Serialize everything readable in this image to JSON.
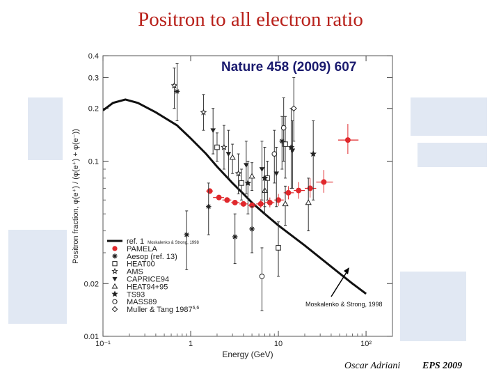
{
  "slide": {
    "title": "Positron to all electron ratio",
    "author": "Oscar Adriani",
    "event": "EPS 2009"
  },
  "chart_data": {
    "type": "scatter",
    "annotation": "Nature 458 (2009) 607",
    "xlabel": "Energy (GeV)",
    "ylabel": "Positron fraction, φ(e⁺) / (φ(e⁺) + φ(e⁻))",
    "xscale": "log",
    "yscale": "log",
    "xlim": [
      0.1,
      200
    ],
    "ylim": [
      0.01,
      0.4
    ],
    "x_ticks": [
      {
        "value": 0.1,
        "label": "10⁻¹"
      },
      {
        "value": 1,
        "label": "1"
      },
      {
        "value": 10,
        "label": "10"
      },
      {
        "value": 100,
        "label": "10²"
      }
    ],
    "y_ticks": [
      {
        "value": 0.01,
        "label": "0.01"
      },
      {
        "value": 0.02,
        "label": "0.02"
      },
      {
        "value": 0.1,
        "label": "0.1"
      },
      {
        "value": 0.2,
        "label": "0.2"
      },
      {
        "value": 0.3,
        "label": "0.3"
      },
      {
        "value": 0.4,
        "label": "0.4"
      }
    ],
    "legend_position": "bottom-left",
    "legend": [
      {
        "label": "ref. 1",
        "sublabel": "Moskalenko & Strong, 1998",
        "marker": "line",
        "color": "#111111"
      },
      {
        "label": "PAMELA",
        "marker": "circle-filled",
        "color": "#e0282c"
      },
      {
        "label": "Aesop (ref. 13)",
        "marker": "asterisk",
        "color": "#222222"
      },
      {
        "label": "HEAT00",
        "marker": "square-open",
        "color": "#222222"
      },
      {
        "label": "AMS",
        "marker": "star",
        "color": "#222222"
      },
      {
        "label": "CAPRICE94",
        "marker": "triangle-down",
        "color": "#222222"
      },
      {
        "label": "HEAT94+95",
        "marker": "triangle-open",
        "color": "#222222"
      },
      {
        "label": "TS93",
        "marker": "star-filled",
        "color": "#222222"
      },
      {
        "label": "MASS89",
        "marker": "circle-open",
        "color": "#222222"
      },
      {
        "label": "Muller & Tang 1987",
        "label_sup": "6,6",
        "marker": "diamond-open",
        "color": "#222222"
      }
    ],
    "callout": "Moskalenko & Strong, 1998",
    "series": [
      {
        "name": "ref. 1",
        "kind": "line",
        "color": "#111111",
        "x": [
          0.1,
          0.13,
          0.18,
          0.25,
          0.4,
          0.7,
          1.0,
          1.5,
          2.0,
          3.0,
          4.0,
          5.0,
          7.0,
          10,
          20,
          40,
          70,
          100
        ],
        "y": [
          0.195,
          0.215,
          0.225,
          0.215,
          0.19,
          0.16,
          0.135,
          0.11,
          0.093,
          0.075,
          0.065,
          0.058,
          0.05,
          0.043,
          0.033,
          0.025,
          0.02,
          0.0175
        ]
      },
      {
        "name": "PAMELA",
        "kind": "points",
        "color": "#e0282c",
        "points": [
          {
            "x": 1.65,
            "y": 0.0675,
            "lo": 0.066,
            "hi": 0.069,
            "xlo": 1.5,
            "xhi": 1.8
          },
          {
            "x": 2.1,
            "y": 0.062,
            "lo": 0.0605,
            "hi": 0.0635,
            "xlo": 1.8,
            "xhi": 2.4
          },
          {
            "x": 2.6,
            "y": 0.06,
            "lo": 0.0585,
            "hi": 0.0615,
            "xlo": 2.3,
            "xhi": 2.9
          },
          {
            "x": 3.2,
            "y": 0.058,
            "lo": 0.0565,
            "hi": 0.0595,
            "xlo": 2.9,
            "xhi": 3.6
          },
          {
            "x": 4.0,
            "y": 0.057,
            "lo": 0.055,
            "hi": 0.059,
            "xlo": 3.6,
            "xhi": 4.5
          },
          {
            "x": 5.0,
            "y": 0.056,
            "lo": 0.054,
            "hi": 0.058,
            "xlo": 4.5,
            "xhi": 5.6
          },
          {
            "x": 6.3,
            "y": 0.057,
            "lo": 0.054,
            "hi": 0.0605,
            "xlo": 5.6,
            "xhi": 7.0
          },
          {
            "x": 8.0,
            "y": 0.058,
            "lo": 0.0545,
            "hi": 0.062,
            "xlo": 7.0,
            "xhi": 9.0
          },
          {
            "x": 10.0,
            "y": 0.06,
            "lo": 0.0555,
            "hi": 0.065,
            "xlo": 9.0,
            "xhi": 11.5
          },
          {
            "x": 13.0,
            "y": 0.066,
            "lo": 0.0605,
            "hi": 0.072,
            "xlo": 11.5,
            "xhi": 15
          },
          {
            "x": 17.0,
            "y": 0.068,
            "lo": 0.061,
            "hi": 0.076,
            "xlo": 15,
            "xhi": 20
          },
          {
            "x": 23.0,
            "y": 0.07,
            "lo": 0.062,
            "hi": 0.08,
            "xlo": 20,
            "xhi": 27
          },
          {
            "x": 33.0,
            "y": 0.076,
            "lo": 0.066,
            "hi": 0.089,
            "xlo": 27,
            "xhi": 42
          },
          {
            "x": 62.0,
            "y": 0.132,
            "lo": 0.11,
            "hi": 0.163,
            "xlo": 48,
            "xhi": 82
          }
        ]
      },
      {
        "name": "Aesop (ref. 13)",
        "kind": "points",
        "marker": "asterisk",
        "points": [
          {
            "x": 0.7,
            "y": 0.25,
            "lo": 0.17,
            "hi": 0.36
          },
          {
            "x": 0.9,
            "y": 0.038,
            "lo": 0.024,
            "hi": 0.052
          },
          {
            "x": 1.6,
            "y": 0.055,
            "lo": 0.038,
            "hi": 0.075
          },
          {
            "x": 3.2,
            "y": 0.037,
            "lo": 0.026,
            "hi": 0.05
          },
          {
            "x": 5.0,
            "y": 0.041,
            "lo": 0.03,
            "hi": 0.055
          },
          {
            "x": 11.0,
            "y": 0.13,
            "lo": 0.09,
            "hi": 0.18
          }
        ]
      },
      {
        "name": "HEAT00",
        "kind": "points",
        "marker": "square-open",
        "points": [
          {
            "x": 2.0,
            "y": 0.12,
            "lo": 0.1,
            "hi": 0.145
          },
          {
            "x": 3.8,
            "y": 0.075,
            "lo": 0.06,
            "hi": 0.09
          },
          {
            "x": 7.5,
            "y": 0.08,
            "lo": 0.06,
            "hi": 0.1
          },
          {
            "x": 10.0,
            "y": 0.032,
            "lo": 0.022,
            "hi": 0.045
          },
          {
            "x": 12.0,
            "y": 0.125,
            "lo": 0.08,
            "hi": 0.18
          }
        ]
      },
      {
        "name": "AMS",
        "kind": "points",
        "marker": "star",
        "points": [
          {
            "x": 0.65,
            "y": 0.27,
            "lo": 0.2,
            "hi": 0.34
          },
          {
            "x": 1.4,
            "y": 0.19,
            "lo": 0.15,
            "hi": 0.24
          },
          {
            "x": 2.4,
            "y": 0.12,
            "lo": 0.09,
            "hi": 0.16
          },
          {
            "x": 3.5,
            "y": 0.085,
            "lo": 0.065,
            "hi": 0.11
          }
        ]
      },
      {
        "name": "CAPRICE94",
        "kind": "points",
        "marker": "triangle-down",
        "points": [
          {
            "x": 1.8,
            "y": 0.15,
            "lo": 0.11,
            "hi": 0.2
          },
          {
            "x": 2.7,
            "y": 0.11,
            "lo": 0.08,
            "hi": 0.15
          },
          {
            "x": 4.3,
            "y": 0.095,
            "lo": 0.065,
            "hi": 0.13
          },
          {
            "x": 6.5,
            "y": 0.09,
            "lo": 0.06,
            "hi": 0.13
          },
          {
            "x": 9.5,
            "y": 0.085,
            "lo": 0.055,
            "hi": 0.12
          },
          {
            "x": 14.5,
            "y": 0.115,
            "lo": 0.07,
            "hi": 0.17
          }
        ]
      },
      {
        "name": "HEAT94+95",
        "kind": "points",
        "marker": "triangle-open",
        "points": [
          {
            "x": 3.0,
            "y": 0.105,
            "lo": 0.085,
            "hi": 0.125
          },
          {
            "x": 5.0,
            "y": 0.082,
            "lo": 0.068,
            "hi": 0.098
          },
          {
            "x": 7.0,
            "y": 0.068,
            "lo": 0.055,
            "hi": 0.082
          },
          {
            "x": 12.0,
            "y": 0.057,
            "lo": 0.043,
            "hi": 0.072
          },
          {
            "x": 22.0,
            "y": 0.058,
            "lo": 0.04,
            "hi": 0.08
          }
        ]
      },
      {
        "name": "TS93",
        "kind": "points",
        "marker": "star-filled",
        "points": [
          {
            "x": 4.5,
            "y": 0.075,
            "lo": 0.05,
            "hi": 0.1
          },
          {
            "x": 7.0,
            "y": 0.08,
            "lo": 0.05,
            "hi": 0.12
          },
          {
            "x": 14.0,
            "y": 0.12,
            "lo": 0.07,
            "hi": 0.2
          },
          {
            "x": 25.0,
            "y": 0.11,
            "lo": 0.06,
            "hi": 0.17
          }
        ]
      },
      {
        "name": "MASS89",
        "kind": "points",
        "marker": "circle-open",
        "points": [
          {
            "x": 6.5,
            "y": 0.022,
            "lo": 0.014,
            "hi": 0.032
          },
          {
            "x": 9.0,
            "y": 0.11,
            "lo": 0.075,
            "hi": 0.15
          },
          {
            "x": 11.5,
            "y": 0.155,
            "lo": 0.1,
            "hi": 0.23
          }
        ]
      },
      {
        "name": "Muller & Tang 1987",
        "kind": "points",
        "marker": "diamond-open",
        "points": [
          {
            "x": 15.0,
            "y": 0.2,
            "lo": 0.13,
            "hi": 0.3
          }
        ]
      }
    ]
  }
}
